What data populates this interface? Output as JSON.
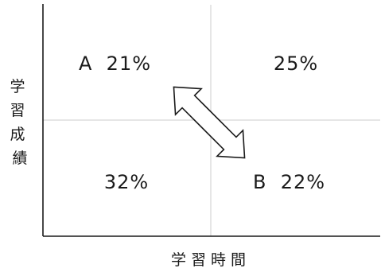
{
  "axes": {
    "x_label": "学習時間",
    "y_label": "学習成績"
  },
  "quadrants": {
    "top_left": "A  21%",
    "top_right": "25%",
    "bottom_left": "32%",
    "bottom_right": "B  22%"
  },
  "colors": {
    "axis": "#1a1a1a",
    "divider": "#cccccc",
    "text": "#1a1a1a"
  }
}
